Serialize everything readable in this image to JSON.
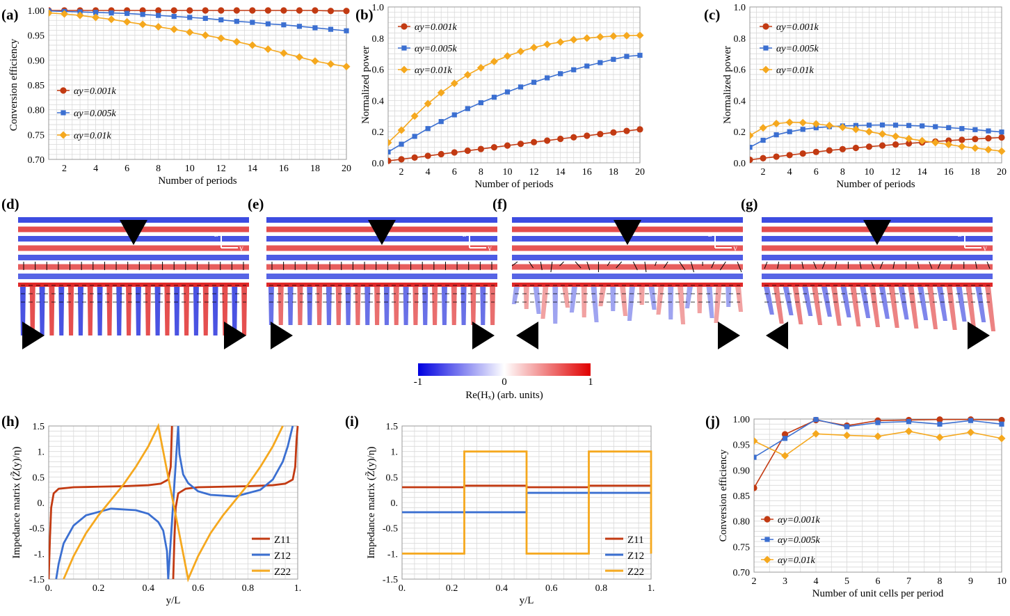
{
  "colors": {
    "red": "#C23A12",
    "blue": "#3B6FD1",
    "orange": "#F5A81E",
    "grid": "#d9d9d9"
  },
  "panel_labels": {
    "a": "(a)",
    "b": "(b)",
    "c": "(c)",
    "d": "(d)",
    "e": "(e)",
    "f": "(f)",
    "g": "(g)",
    "h": "(h)",
    "i": "(i)",
    "j": "(j)"
  },
  "colorbar": {
    "min_label": "-1",
    "mid_label": "0",
    "max_label": "1",
    "caption": "Re(Hₓ) (arb. units)",
    "axis_z": "z",
    "axis_y": "y"
  },
  "chart_data": [
    {
      "id": "a",
      "type": "line",
      "title": "",
      "xlabel": "Number of periods",
      "ylabel": "Conversion efficiency",
      "xlim": [
        1,
        20
      ],
      "ylim": [
        0.7,
        1.0
      ],
      "xticks": [
        2,
        4,
        6,
        8,
        10,
        12,
        14,
        16,
        18,
        20
      ],
      "yticks": [
        0.7,
        0.75,
        0.8,
        0.85,
        0.9,
        0.95,
        1.0
      ],
      "ytick_labels": [
        "0.70",
        "0.75",
        "0.80",
        "0.85",
        "0.90",
        "0.95",
        "1.00"
      ],
      "x": [
        1,
        2,
        3,
        4,
        5,
        6,
        7,
        8,
        9,
        10,
        11,
        12,
        13,
        14,
        15,
        16,
        17,
        18,
        19,
        20
      ],
      "series": [
        {
          "name": "αy=0.001k",
          "color": "red",
          "marker": "circle",
          "values": [
            1.0,
            1.0,
            1.0,
            1.0,
            1.0,
            1.0,
            1.0,
            1.0,
            1.0,
            1.0,
            1.0,
            1.0,
            1.0,
            1.0,
            1.0,
            1.0,
            1.0,
            1.0,
            0.999,
            0.999
          ]
        },
        {
          "name": "αy=0.005k",
          "color": "blue",
          "marker": "square",
          "values": [
            0.999,
            0.998,
            0.997,
            0.996,
            0.995,
            0.994,
            0.992,
            0.99,
            0.988,
            0.986,
            0.984,
            0.981,
            0.978,
            0.976,
            0.973,
            0.971,
            0.968,
            0.965,
            0.962,
            0.959
          ]
        },
        {
          "name": "αy=0.01k",
          "color": "orange",
          "marker": "diamond",
          "values": [
            0.995,
            0.993,
            0.99,
            0.986,
            0.982,
            0.977,
            0.972,
            0.967,
            0.962,
            0.956,
            0.95,
            0.944,
            0.937,
            0.93,
            0.922,
            0.914,
            0.906,
            0.898,
            0.892,
            0.887
          ]
        }
      ]
    },
    {
      "id": "b",
      "type": "line",
      "title": "",
      "xlabel": "Number of periods",
      "ylabel": "Normalized power",
      "xlim": [
        1,
        20
      ],
      "ylim": [
        0,
        1.0
      ],
      "xticks": [
        2,
        4,
        6,
        8,
        10,
        12,
        14,
        16,
        18,
        20
      ],
      "yticks": [
        0,
        0.2,
        0.4,
        0.6,
        0.8,
        1.0
      ],
      "ytick_labels": [
        "0.0",
        "0.2",
        "0.4",
        "0.6",
        "0.8",
        "1.0"
      ],
      "x": [
        1,
        2,
        3,
        4,
        5,
        6,
        7,
        8,
        9,
        10,
        11,
        12,
        13,
        14,
        15,
        16,
        17,
        18,
        19,
        20
      ],
      "series": [
        {
          "name": "αy=0.001k",
          "color": "red",
          "marker": "circle",
          "values": [
            0.013,
            0.023,
            0.034,
            0.045,
            0.056,
            0.067,
            0.078,
            0.089,
            0.1,
            0.111,
            0.122,
            0.133,
            0.143,
            0.154,
            0.164,
            0.174,
            0.185,
            0.195,
            0.205,
            0.215
          ]
        },
        {
          "name": "αy=0.005k",
          "color": "blue",
          "marker": "square",
          "values": [
            0.07,
            0.12,
            0.17,
            0.22,
            0.265,
            0.308,
            0.348,
            0.386,
            0.421,
            0.455,
            0.487,
            0.517,
            0.545,
            0.572,
            0.597,
            0.621,
            0.643,
            0.664,
            0.683,
            0.69
          ]
        },
        {
          "name": "αy=0.01k",
          "color": "orange",
          "marker": "diamond",
          "values": [
            0.13,
            0.21,
            0.3,
            0.38,
            0.45,
            0.51,
            0.565,
            0.61,
            0.65,
            0.685,
            0.715,
            0.74,
            0.76,
            0.775,
            0.79,
            0.8,
            0.808,
            0.813,
            0.816,
            0.818
          ]
        }
      ]
    },
    {
      "id": "c",
      "type": "line",
      "title": "",
      "xlabel": "Number of periods",
      "ylabel": "Normalized power",
      "xlim": [
        1,
        20
      ],
      "ylim": [
        0,
        1.0
      ],
      "xticks": [
        2,
        4,
        6,
        8,
        10,
        12,
        14,
        16,
        18,
        20
      ],
      "yticks": [
        0,
        0.2,
        0.4,
        0.6,
        0.8,
        1.0
      ],
      "ytick_labels": [
        "0.0",
        "0.2",
        "0.4",
        "0.6",
        "0.8",
        "1.0"
      ],
      "x": [
        1,
        2,
        3,
        4,
        5,
        6,
        7,
        8,
        9,
        10,
        11,
        12,
        13,
        14,
        15,
        16,
        17,
        18,
        19,
        20
      ],
      "series": [
        {
          "name": "αy=0.001k",
          "color": "red",
          "marker": "circle",
          "values": [
            0.02,
            0.03,
            0.04,
            0.05,
            0.06,
            0.07,
            0.08,
            0.088,
            0.096,
            0.104,
            0.111,
            0.118,
            0.125,
            0.131,
            0.137,
            0.143,
            0.148,
            0.153,
            0.158,
            0.163
          ]
        },
        {
          "name": "αy=0.005k",
          "color": "blue",
          "marker": "square",
          "values": [
            0.1,
            0.145,
            0.18,
            0.2,
            0.215,
            0.225,
            0.232,
            0.237,
            0.24,
            0.242,
            0.243,
            0.242,
            0.24,
            0.237,
            0.232,
            0.226,
            0.22,
            0.213,
            0.205,
            0.198
          ]
        },
        {
          "name": "αy=0.01k",
          "color": "orange",
          "marker": "diamond",
          "values": [
            0.175,
            0.225,
            0.252,
            0.26,
            0.258,
            0.25,
            0.24,
            0.228,
            0.215,
            0.2,
            0.185,
            0.17,
            0.155,
            0.142,
            0.13,
            0.118,
            0.105,
            0.095,
            0.085,
            0.075
          ]
        }
      ]
    },
    {
      "id": "h",
      "type": "line",
      "title": "",
      "xlabel": "y/L",
      "ylabel": "Impedance matrix (Z̃(y)/η)",
      "xlim": [
        0,
        1
      ],
      "ylim": [
        -1.5,
        1.5
      ],
      "xticks": [
        0,
        0.2,
        0.4,
        0.6,
        0.8,
        1
      ],
      "xtick_labels": [
        "0.",
        "0.2",
        "0.4",
        "0.6",
        "0.8",
        "1."
      ],
      "yticks": [
        -1.5,
        -1,
        -0.5,
        0,
        0.5,
        1,
        1.5
      ],
      "ytick_labels": [
        "-1.5",
        "-1.",
        "-0.5",
        "0.",
        "0.5",
        "1.",
        "1.5"
      ],
      "series": [
        {
          "name": "Z11",
          "color": "red",
          "x": [
            0.0,
            0.005,
            0.01,
            0.02,
            0.04,
            0.1,
            0.2,
            0.3,
            0.4,
            0.45,
            0.48,
            0.49,
            0.495,
            0.5,
            0.505,
            0.51,
            0.52,
            0.55,
            0.6,
            0.7,
            0.8,
            0.9,
            0.95,
            0.98,
            0.99,
            0.995,
            1.0
          ],
          "values": [
            -1.5,
            -0.7,
            -0.1,
            0.18,
            0.27,
            0.3,
            0.31,
            0.32,
            0.34,
            0.37,
            0.45,
            0.7,
            1.5,
            -1.5,
            -0.7,
            -0.1,
            0.18,
            0.27,
            0.3,
            0.31,
            0.32,
            0.34,
            0.37,
            0.45,
            0.7,
            1.2,
            1.5
          ]
        },
        {
          "name": "Z12",
          "color": "blue",
          "x": [
            0.03,
            0.04,
            0.06,
            0.1,
            0.15,
            0.25,
            0.35,
            0.4,
            0.44,
            0.46,
            0.475,
            0.48,
            0.52,
            0.525,
            0.54,
            0.56,
            0.6,
            0.65,
            0.75,
            0.85,
            0.9,
            0.94,
            0.96,
            0.975,
            0.98
          ],
          "values": [
            -1.5,
            -1.2,
            -0.8,
            -0.45,
            -0.25,
            -0.12,
            -0.15,
            -0.22,
            -0.38,
            -0.55,
            -0.95,
            -1.5,
            1.5,
            0.95,
            0.55,
            0.38,
            0.22,
            0.15,
            0.12,
            0.25,
            0.45,
            0.8,
            1.1,
            1.4,
            1.5
          ]
        },
        {
          "name": "Z22",
          "color": "orange",
          "x": [
            0.06,
            0.1,
            0.15,
            0.2,
            0.25,
            0.3,
            0.35,
            0.4,
            0.42,
            0.44,
            0.56,
            0.6,
            0.65,
            0.7,
            0.75,
            0.8,
            0.85,
            0.9,
            0.92,
            0.94
          ],
          "values": [
            -1.5,
            -1.05,
            -0.6,
            -0.25,
            0.05,
            0.35,
            0.7,
            1.1,
            1.3,
            1.5,
            -1.5,
            -1.05,
            -0.6,
            -0.25,
            0.05,
            0.35,
            0.7,
            1.1,
            1.3,
            1.5
          ]
        }
      ]
    },
    {
      "id": "i",
      "type": "line",
      "title": "",
      "xlabel": "y/L",
      "ylabel": "Impedance matrix (Z̃(y)/η)",
      "xlim": [
        0,
        1
      ],
      "ylim": [
        -1.5,
        1.5
      ],
      "xticks": [
        0,
        0.2,
        0.4,
        0.6,
        0.8,
        1
      ],
      "xtick_labels": [
        "0.",
        "0.2",
        "0.4",
        "0.6",
        "0.8",
        "1."
      ],
      "yticks": [
        -1.5,
        -1,
        -0.5,
        0,
        0.5,
        1,
        1.5
      ],
      "ytick_labels": [
        "-1.5",
        "-1.",
        "-0.5",
        "0.",
        "0.5",
        "1.",
        "1.5"
      ],
      "series": [
        {
          "name": "Z11",
          "color": "red",
          "x": [
            0,
            0.25,
            0.25,
            0.5,
            0.5,
            0.75,
            0.75,
            1.0
          ],
          "values": [
            0.3,
            0.3,
            0.33,
            0.33,
            0.3,
            0.3,
            0.33,
            0.33
          ]
        },
        {
          "name": "Z12",
          "color": "blue",
          "x": [
            0,
            0.25,
            0.25,
            0.5,
            0.5,
            0.75,
            0.75,
            1.0
          ],
          "values": [
            -0.19,
            -0.19,
            -0.19,
            -0.19,
            0.19,
            0.19,
            0.19,
            0.19
          ]
        },
        {
          "name": "Z22",
          "color": "orange",
          "x": [
            0,
            0.25,
            0.25,
            0.5,
            0.5,
            0.75,
            0.75,
            1.0,
            1.0
          ],
          "values": [
            -1.0,
            -1.0,
            1.0,
            1.0,
            -1.0,
            -1.0,
            1.0,
            1.0,
            -1.0
          ]
        }
      ]
    },
    {
      "id": "j",
      "type": "line",
      "title": "",
      "xlabel": "Number of unit cells per period",
      "ylabel": "Conversion efficiency",
      "xlim": [
        2,
        10
      ],
      "ylim": [
        0.7,
        1.0
      ],
      "xticks": [
        2,
        3,
        4,
        5,
        6,
        7,
        8,
        9,
        10
      ],
      "yticks": [
        0.7,
        0.75,
        0.8,
        0.85,
        0.9,
        0.95,
        1.0
      ],
      "ytick_labels": [
        "0.70",
        "0.75",
        "0.80",
        "0.85",
        "0.90",
        "0.95",
        "1.00"
      ],
      "x": [
        2,
        3,
        4,
        5,
        6,
        7,
        8,
        9,
        10
      ],
      "series": [
        {
          "name": "αy=0.001k",
          "color": "red",
          "marker": "circle",
          "values": [
            0.865,
            0.97,
            0.998,
            0.987,
            0.997,
            0.998,
            0.999,
            0.999,
            0.998
          ]
        },
        {
          "name": "αy=0.005k",
          "color": "blue",
          "marker": "square",
          "values": [
            0.925,
            0.962,
            0.999,
            0.985,
            0.993,
            0.995,
            0.99,
            0.997,
            0.99
          ]
        },
        {
          "name": "αy=0.01k",
          "color": "orange",
          "marker": "diamond",
          "values": [
            0.957,
            0.928,
            0.971,
            0.968,
            0.966,
            0.976,
            0.964,
            0.974,
            0.962
          ]
        }
      ]
    }
  ],
  "field_maps": [
    {
      "id": "d",
      "lower_pattern": "regular",
      "arrows": "vertical"
    },
    {
      "id": "e",
      "lower_pattern": "regular-weak",
      "arrows": "vertical"
    },
    {
      "id": "f",
      "lower_pattern": "irregular",
      "arrows": "chaotic"
    },
    {
      "id": "g",
      "lower_pattern": "tilted",
      "arrows": "mixed"
    }
  ]
}
